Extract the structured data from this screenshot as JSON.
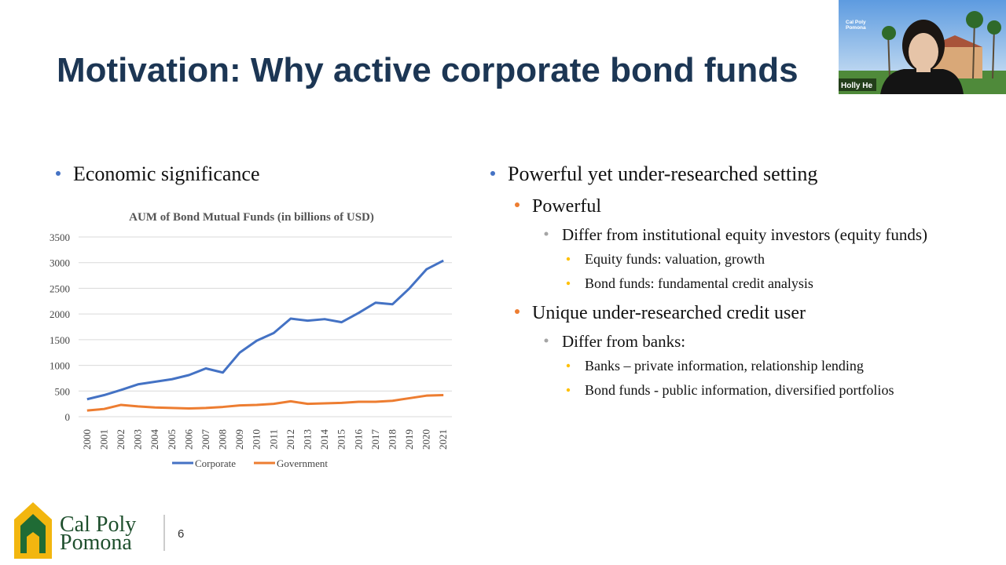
{
  "slide": {
    "title": "Motivation: Why active corporate bond funds",
    "left_bullet": "Economic significance",
    "right": {
      "heading": "Powerful yet under-researched setting",
      "groups": [
        {
          "heading": "Powerful",
          "items": [
            {
              "text": "Differ from institutional equity investors (equity funds)",
              "subitems": [
                "Equity funds: valuation, growth",
                "Bond funds: fundamental credit analysis"
              ]
            }
          ]
        },
        {
          "heading": "Unique under-researched credit user",
          "items": [
            {
              "text": "Differ from banks:",
              "subitems": [
                "Banks – private information, relationship lending",
                "Bond funds - public information, diversified portfolios"
              ]
            }
          ]
        }
      ]
    },
    "logo": [
      "Cal Poly",
      "Pomona"
    ],
    "page_number": "6"
  },
  "video": {
    "name": "Holly He",
    "background_text": [
      "Cal Poly",
      "Pomona"
    ]
  },
  "chart_data": {
    "type": "line",
    "title": "AUM of Bond Mutual Funds (in billions of USD)",
    "categories": [
      "2000",
      "2001",
      "2002",
      "2003",
      "2004",
      "2005",
      "2006",
      "2007",
      "2008",
      "2009",
      "2010",
      "2011",
      "2012",
      "2013",
      "2014",
      "2015",
      "2016",
      "2017",
      "2018",
      "2019",
      "2020",
      "2021"
    ],
    "series": [
      {
        "name": "Corporate",
        "color": "#4472c4",
        "values": [
          340,
          420,
          520,
          630,
          680,
          730,
          810,
          940,
          860,
          1250,
          1480,
          1630,
          1910,
          1870,
          1900,
          1840,
          2020,
          2220,
          2190,
          2500,
          2870,
          3040
        ]
      },
      {
        "name": "Government",
        "color": "#ed7d31",
        "values": [
          120,
          150,
          230,
          200,
          180,
          170,
          160,
          170,
          190,
          220,
          230,
          250,
          300,
          250,
          260,
          270,
          290,
          290,
          310,
          360,
          410,
          420
        ]
      }
    ],
    "ylim": [
      0,
      3500
    ],
    "yticks": [
      0,
      500,
      1000,
      1500,
      2000,
      2500,
      3000,
      3500
    ],
    "grid": true,
    "legend": "bottom"
  }
}
